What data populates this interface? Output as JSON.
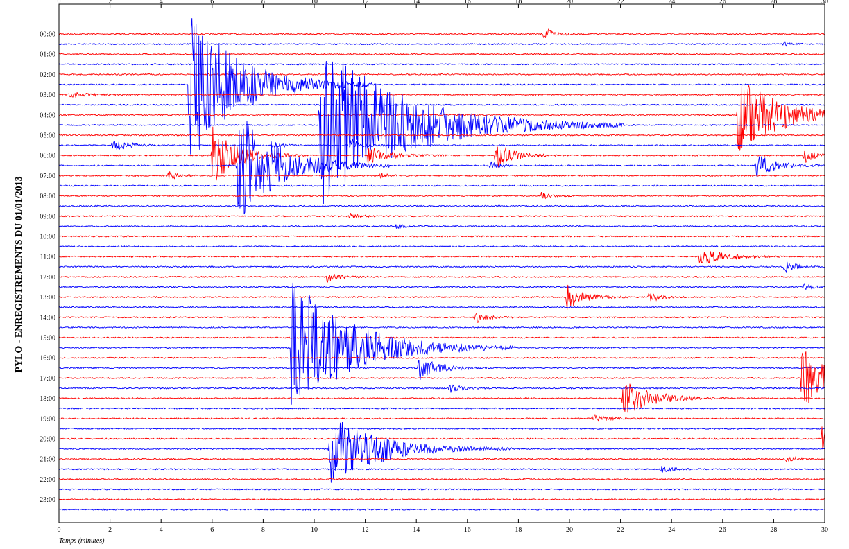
{
  "chart_data": {
    "type": "line",
    "title": "PYLO - ENREGISTREMENTS DU 01/01/2013",
    "xlabel": "Temps (minutes)",
    "ylabel": "",
    "xlim": [
      0,
      30
    ],
    "x_ticks": [
      0,
      2,
      4,
      6,
      8,
      10,
      12,
      14,
      16,
      18,
      20,
      22,
      24,
      26,
      28,
      30
    ],
    "hour_labels": [
      "00:00",
      "01:00",
      "02:00",
      "03:00",
      "04:00",
      "05:00",
      "06:00",
      "07:00",
      "08:00",
      "09:00",
      "10:00",
      "11:00",
      "12:00",
      "13:00",
      "14:00",
      "15:00",
      "16:00",
      "17:00",
      "18:00",
      "19:00",
      "20:00",
      "21:00",
      "22:00",
      "23:00"
    ],
    "trace_interval_minutes": 30,
    "trace_count": 48,
    "colors": {
      "first_half_hour": "#ff0000",
      "second_half_hour": "#0000ff",
      "frame": "#000000"
    },
    "events": [
      {
        "trace": 0,
        "minute": 19.0,
        "amp": 0.6,
        "dur": 0.4
      },
      {
        "trace": 1,
        "minute": 28.4,
        "amp": 0.2,
        "dur": 0.3
      },
      {
        "trace": 5,
        "minute": 5.1,
        "amp": 8.0,
        "dur": 1.8
      },
      {
        "trace": 6,
        "minute": 0.4,
        "amp": 0.3,
        "dur": 0.6
      },
      {
        "trace": 8,
        "minute": 26.6,
        "amp": 4.0,
        "dur": 1.6
      },
      {
        "trace": 9,
        "minute": 10.2,
        "amp": 9.0,
        "dur": 3.0
      },
      {
        "trace": 11,
        "minute": 2.1,
        "amp": 0.8,
        "dur": 0.5
      },
      {
        "trace": 11,
        "minute": 8.4,
        "amp": 0.4,
        "dur": 0.3
      },
      {
        "trace": 11,
        "minute": 11.4,
        "amp": 0.7,
        "dur": 0.4
      },
      {
        "trace": 12,
        "minute": 6.0,
        "amp": 3.0,
        "dur": 0.9
      },
      {
        "trace": 12,
        "minute": 12.1,
        "amp": 0.9,
        "dur": 0.8
      },
      {
        "trace": 12,
        "minute": 17.1,
        "amp": 1.5,
        "dur": 0.6
      },
      {
        "trace": 12,
        "minute": 29.2,
        "amp": 0.8,
        "dur": 0.4
      },
      {
        "trace": 13,
        "minute": 7.0,
        "amp": 6.0,
        "dur": 1.5
      },
      {
        "trace": 13,
        "minute": 27.3,
        "amp": 1.2,
        "dur": 0.7
      },
      {
        "trace": 13,
        "minute": 16.9,
        "amp": 0.4,
        "dur": 0.3
      },
      {
        "trace": 14,
        "minute": 4.3,
        "amp": 0.5,
        "dur": 0.3
      },
      {
        "trace": 14,
        "minute": 12.6,
        "amp": 0.3,
        "dur": 0.3
      },
      {
        "trace": 16,
        "minute": 18.9,
        "amp": 0.4,
        "dur": 0.3
      },
      {
        "trace": 19,
        "minute": 13.2,
        "amp": 0.3,
        "dur": 0.3
      },
      {
        "trace": 18,
        "minute": 11.4,
        "amp": 0.3,
        "dur": 0.3
      },
      {
        "trace": 22,
        "minute": 25.1,
        "amp": 1.0,
        "dur": 0.8
      },
      {
        "trace": 23,
        "minute": 28.4,
        "amp": 0.7,
        "dur": 0.4
      },
      {
        "trace": 24,
        "minute": 10.5,
        "amp": 0.5,
        "dur": 0.4
      },
      {
        "trace": 25,
        "minute": 29.2,
        "amp": 0.3,
        "dur": 0.3
      },
      {
        "trace": 26,
        "minute": 19.9,
        "amp": 1.3,
        "dur": 0.6
      },
      {
        "trace": 26,
        "minute": 23.1,
        "amp": 0.6,
        "dur": 0.4
      },
      {
        "trace": 28,
        "minute": 16.3,
        "amp": 0.6,
        "dur": 0.4
      },
      {
        "trace": 31,
        "minute": 9.1,
        "amp": 7.0,
        "dur": 2.2
      },
      {
        "trace": 33,
        "minute": 14.1,
        "amp": 1.3,
        "dur": 0.7
      },
      {
        "trace": 34,
        "minute": 29.1,
        "amp": 3.0,
        "dur": 1.2
      },
      {
        "trace": 35,
        "minute": 15.3,
        "amp": 0.5,
        "dur": 0.4
      },
      {
        "trace": 36,
        "minute": 22.1,
        "amp": 2.0,
        "dur": 1.0
      },
      {
        "trace": 38,
        "minute": 20.9,
        "amp": 0.4,
        "dur": 0.6
      },
      {
        "trace": 40,
        "minute": 29.9,
        "amp": 1.5,
        "dur": 0.5
      },
      {
        "trace": 41,
        "minute": 10.6,
        "amp": 3.5,
        "dur": 1.8
      },
      {
        "trace": 41,
        "minute": 12.6,
        "amp": 0.4,
        "dur": 0.3
      },
      {
        "trace": 43,
        "minute": 23.6,
        "amp": 0.3,
        "dur": 0.5
      },
      {
        "trace": 42,
        "minute": 28.5,
        "amp": 0.3,
        "dur": 0.4
      }
    ]
  }
}
